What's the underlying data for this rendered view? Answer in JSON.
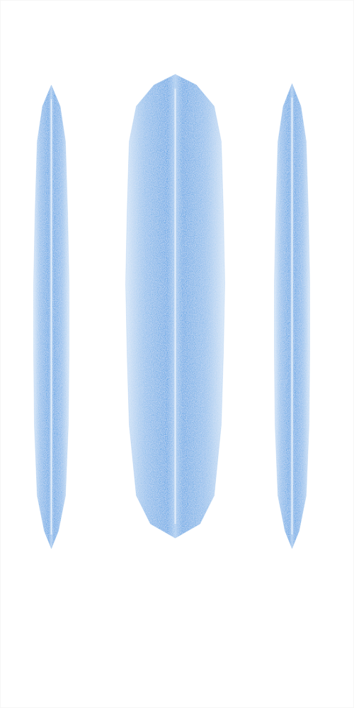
{
  "chart_data": {
    "type": "violin",
    "tick_labels": false,
    "color": "#3d9be3",
    "xlim": [
      0,
      10
    ],
    "ylim": [
      0,
      10
    ],
    "violins": [
      {
        "x": 1.45,
        "y": [
          8.8,
          8.5,
          8.0,
          7.0,
          6.0,
          5.0,
          4.0,
          3.0,
          2.5,
          2.25
        ],
        "values": [
          0,
          0.25,
          0.4,
          0.46,
          0.5,
          0.5,
          0.48,
          0.4,
          0.2,
          0
        ]
      },
      {
        "x": 4.95,
        "y": [
          8.95,
          8.8,
          8.5,
          8.0,
          7.0,
          6.0,
          5.0,
          4.0,
          3.0,
          2.6,
          2.4
        ],
        "values": [
          0,
          0.6,
          1.1,
          1.3,
          1.36,
          1.4,
          1.36,
          1.3,
          1.1,
          0.7,
          0
        ]
      },
      {
        "x": 8.25,
        "y": [
          8.82,
          8.5,
          8.0,
          7.0,
          6.0,
          5.0,
          4.0,
          3.0,
          2.5,
          2.25
        ],
        "values": [
          0,
          0.25,
          0.4,
          0.46,
          0.5,
          0.5,
          0.48,
          0.4,
          0.2,
          0
        ]
      }
    ]
  }
}
